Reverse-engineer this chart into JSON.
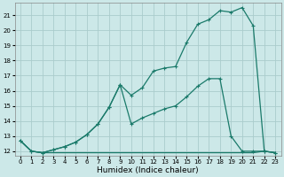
{
  "xlabel": "Humidex (Indice chaleur)",
  "bg_color": "#cce8e8",
  "grid_color": "#aacccc",
  "line_color": "#1a7a6a",
  "xlim": [
    -0.5,
    23.5
  ],
  "ylim": [
    11.7,
    21.8
  ],
  "xticks": [
    0,
    1,
    2,
    3,
    4,
    5,
    6,
    7,
    8,
    9,
    10,
    11,
    12,
    13,
    14,
    15,
    16,
    17,
    18,
    19,
    20,
    21,
    22,
    23
  ],
  "yticks": [
    12,
    13,
    14,
    15,
    16,
    17,
    18,
    19,
    20,
    21
  ],
  "curve1_x": [
    0,
    1,
    2,
    3,
    4,
    5,
    6,
    7,
    8,
    9,
    10,
    11,
    12,
    13,
    14,
    15,
    16,
    17,
    18,
    19,
    20,
    21,
    22,
    23
  ],
  "curve1_y": [
    12.7,
    12.0,
    11.9,
    12.1,
    12.3,
    12.6,
    13.1,
    13.8,
    14.9,
    16.4,
    15.7,
    16.2,
    17.3,
    17.5,
    17.6,
    19.2,
    20.4,
    20.7,
    21.3,
    21.2,
    21.5,
    20.3,
    12.0,
    11.9
  ],
  "curve2_x": [
    0,
    1,
    2,
    3,
    4,
    5,
    6,
    7,
    8,
    9,
    10,
    11,
    12,
    13,
    14,
    15,
    16,
    17,
    18,
    19,
    20,
    21,
    22,
    23
  ],
  "curve2_y": [
    12.7,
    12.0,
    11.9,
    12.1,
    12.3,
    12.6,
    13.1,
    13.8,
    14.9,
    16.4,
    13.8,
    14.2,
    14.5,
    14.8,
    15.0,
    15.6,
    16.3,
    16.8,
    16.8,
    13.0,
    12.0,
    12.0,
    12.0,
    11.9
  ],
  "curve3_x": [
    0,
    1,
    2,
    3,
    4,
    5,
    6,
    7,
    8,
    9,
    10,
    11,
    12,
    13,
    14,
    15,
    16,
    17,
    18,
    19,
    20,
    21,
    22,
    23
  ],
  "curve3_y": [
    12.7,
    12.0,
    11.9,
    11.9,
    11.9,
    11.9,
    11.9,
    11.9,
    11.9,
    11.9,
    11.9,
    11.9,
    11.9,
    11.9,
    11.9,
    11.9,
    11.9,
    11.9,
    11.9,
    11.9,
    11.9,
    11.9,
    12.0,
    11.9
  ]
}
